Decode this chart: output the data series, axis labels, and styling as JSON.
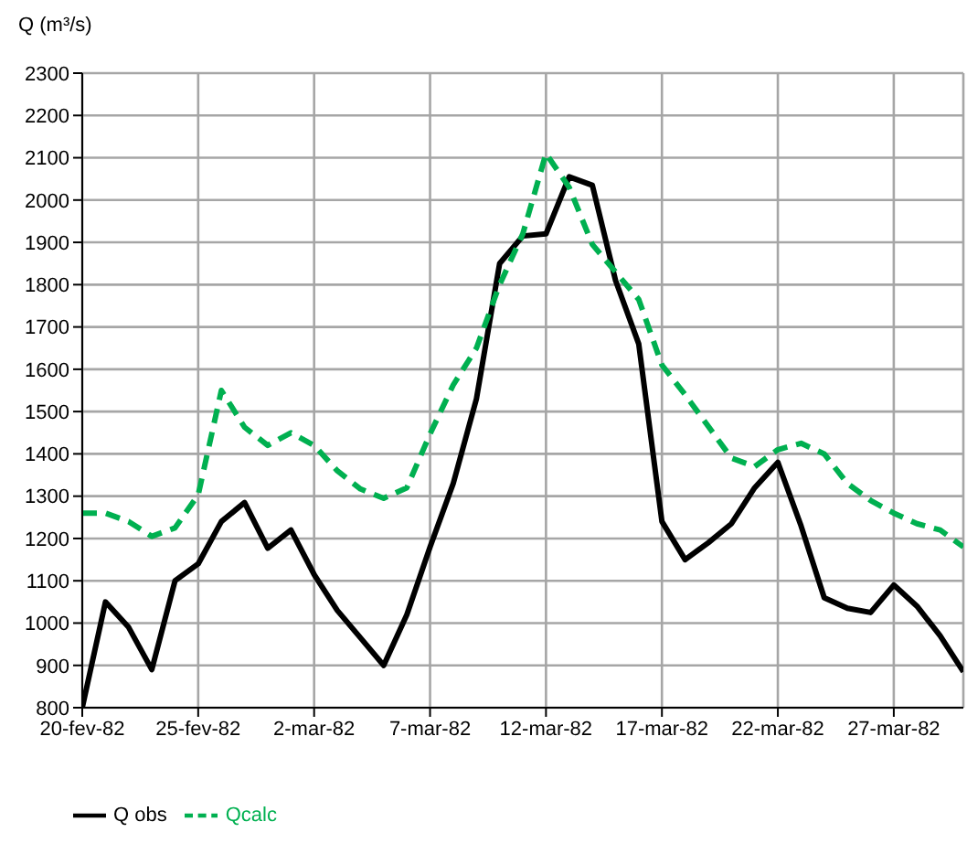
{
  "chart_data": {
    "type": "line",
    "ylabel": "Q (m³/s)",
    "x": [
      "1982-02-20",
      "1982-02-21",
      "1982-02-22",
      "1982-02-23",
      "1982-02-24",
      "1982-02-25",
      "1982-02-26",
      "1982-02-27",
      "1982-02-28",
      "1982-03-01",
      "1982-03-02",
      "1982-03-03",
      "1982-03-04",
      "1982-03-05",
      "1982-03-06",
      "1982-03-07",
      "1982-03-08",
      "1982-03-09",
      "1982-03-10",
      "1982-03-11",
      "1982-03-12",
      "1982-03-13",
      "1982-03-14",
      "1982-03-15",
      "1982-03-16",
      "1982-03-17",
      "1982-03-18",
      "1982-03-19",
      "1982-03-20",
      "1982-03-21",
      "1982-03-22",
      "1982-03-23",
      "1982-03-24",
      "1982-03-25",
      "1982-03-26",
      "1982-03-27",
      "1982-03-28",
      "1982-03-29",
      "1982-03-30"
    ],
    "series": [
      {
        "name": "Q obs",
        "color": "#000000",
        "line_style": "solid",
        "values": [
          800,
          1050,
          990,
          890,
          1100,
          1140,
          1240,
          1285,
          1177,
          1220,
          1115,
          1030,
          965,
          900,
          1020,
          1180,
          1330,
          1530,
          1850,
          1915,
          1920,
          2055,
          2035,
          1810,
          1660,
          1240,
          1150,
          1190,
          1235,
          1320,
          1380,
          1230,
          1060,
          1035,
          1025,
          1090,
          1040,
          970,
          885
        ]
      },
      {
        "name": "Qcalc",
        "color": "#00b050",
        "line_style": "dashed",
        "values": [
          1260,
          1260,
          1240,
          1205,
          1225,
          1303,
          1550,
          1463,
          1420,
          1450,
          1420,
          1360,
          1317,
          1295,
          1320,
          1447,
          1563,
          1650,
          1800,
          1920,
          2110,
          2030,
          1895,
          1830,
          1765,
          1610,
          1540,
          1465,
          1390,
          1370,
          1410,
          1425,
          1400,
          1330,
          1290,
          1260,
          1235,
          1220,
          1180
        ]
      }
    ],
    "xlim": [
      "1982-02-20",
      "1982-03-30"
    ],
    "xticks": [
      {
        "value": "1982-02-20",
        "label": "20-fev-82"
      },
      {
        "value": "1982-02-25",
        "label": "25-fev-82"
      },
      {
        "value": "1982-03-02",
        "label": "2-mar-82"
      },
      {
        "value": "1982-03-07",
        "label": "7-mar-82"
      },
      {
        "value": "1982-03-12",
        "label": "12-mar-82"
      },
      {
        "value": "1982-03-17",
        "label": "17-mar-82"
      },
      {
        "value": "1982-03-22",
        "label": "22-mar-82"
      },
      {
        "value": "1982-03-27",
        "label": "27-mar-82"
      }
    ],
    "ylim": [
      800,
      2300
    ],
    "yticks": [
      800,
      900,
      1000,
      1100,
      1200,
      1300,
      1400,
      1500,
      1600,
      1700,
      1800,
      1900,
      2000,
      2100,
      2200,
      2300
    ],
    "grid": true,
    "legend": "bottom left",
    "marker": "none"
  }
}
